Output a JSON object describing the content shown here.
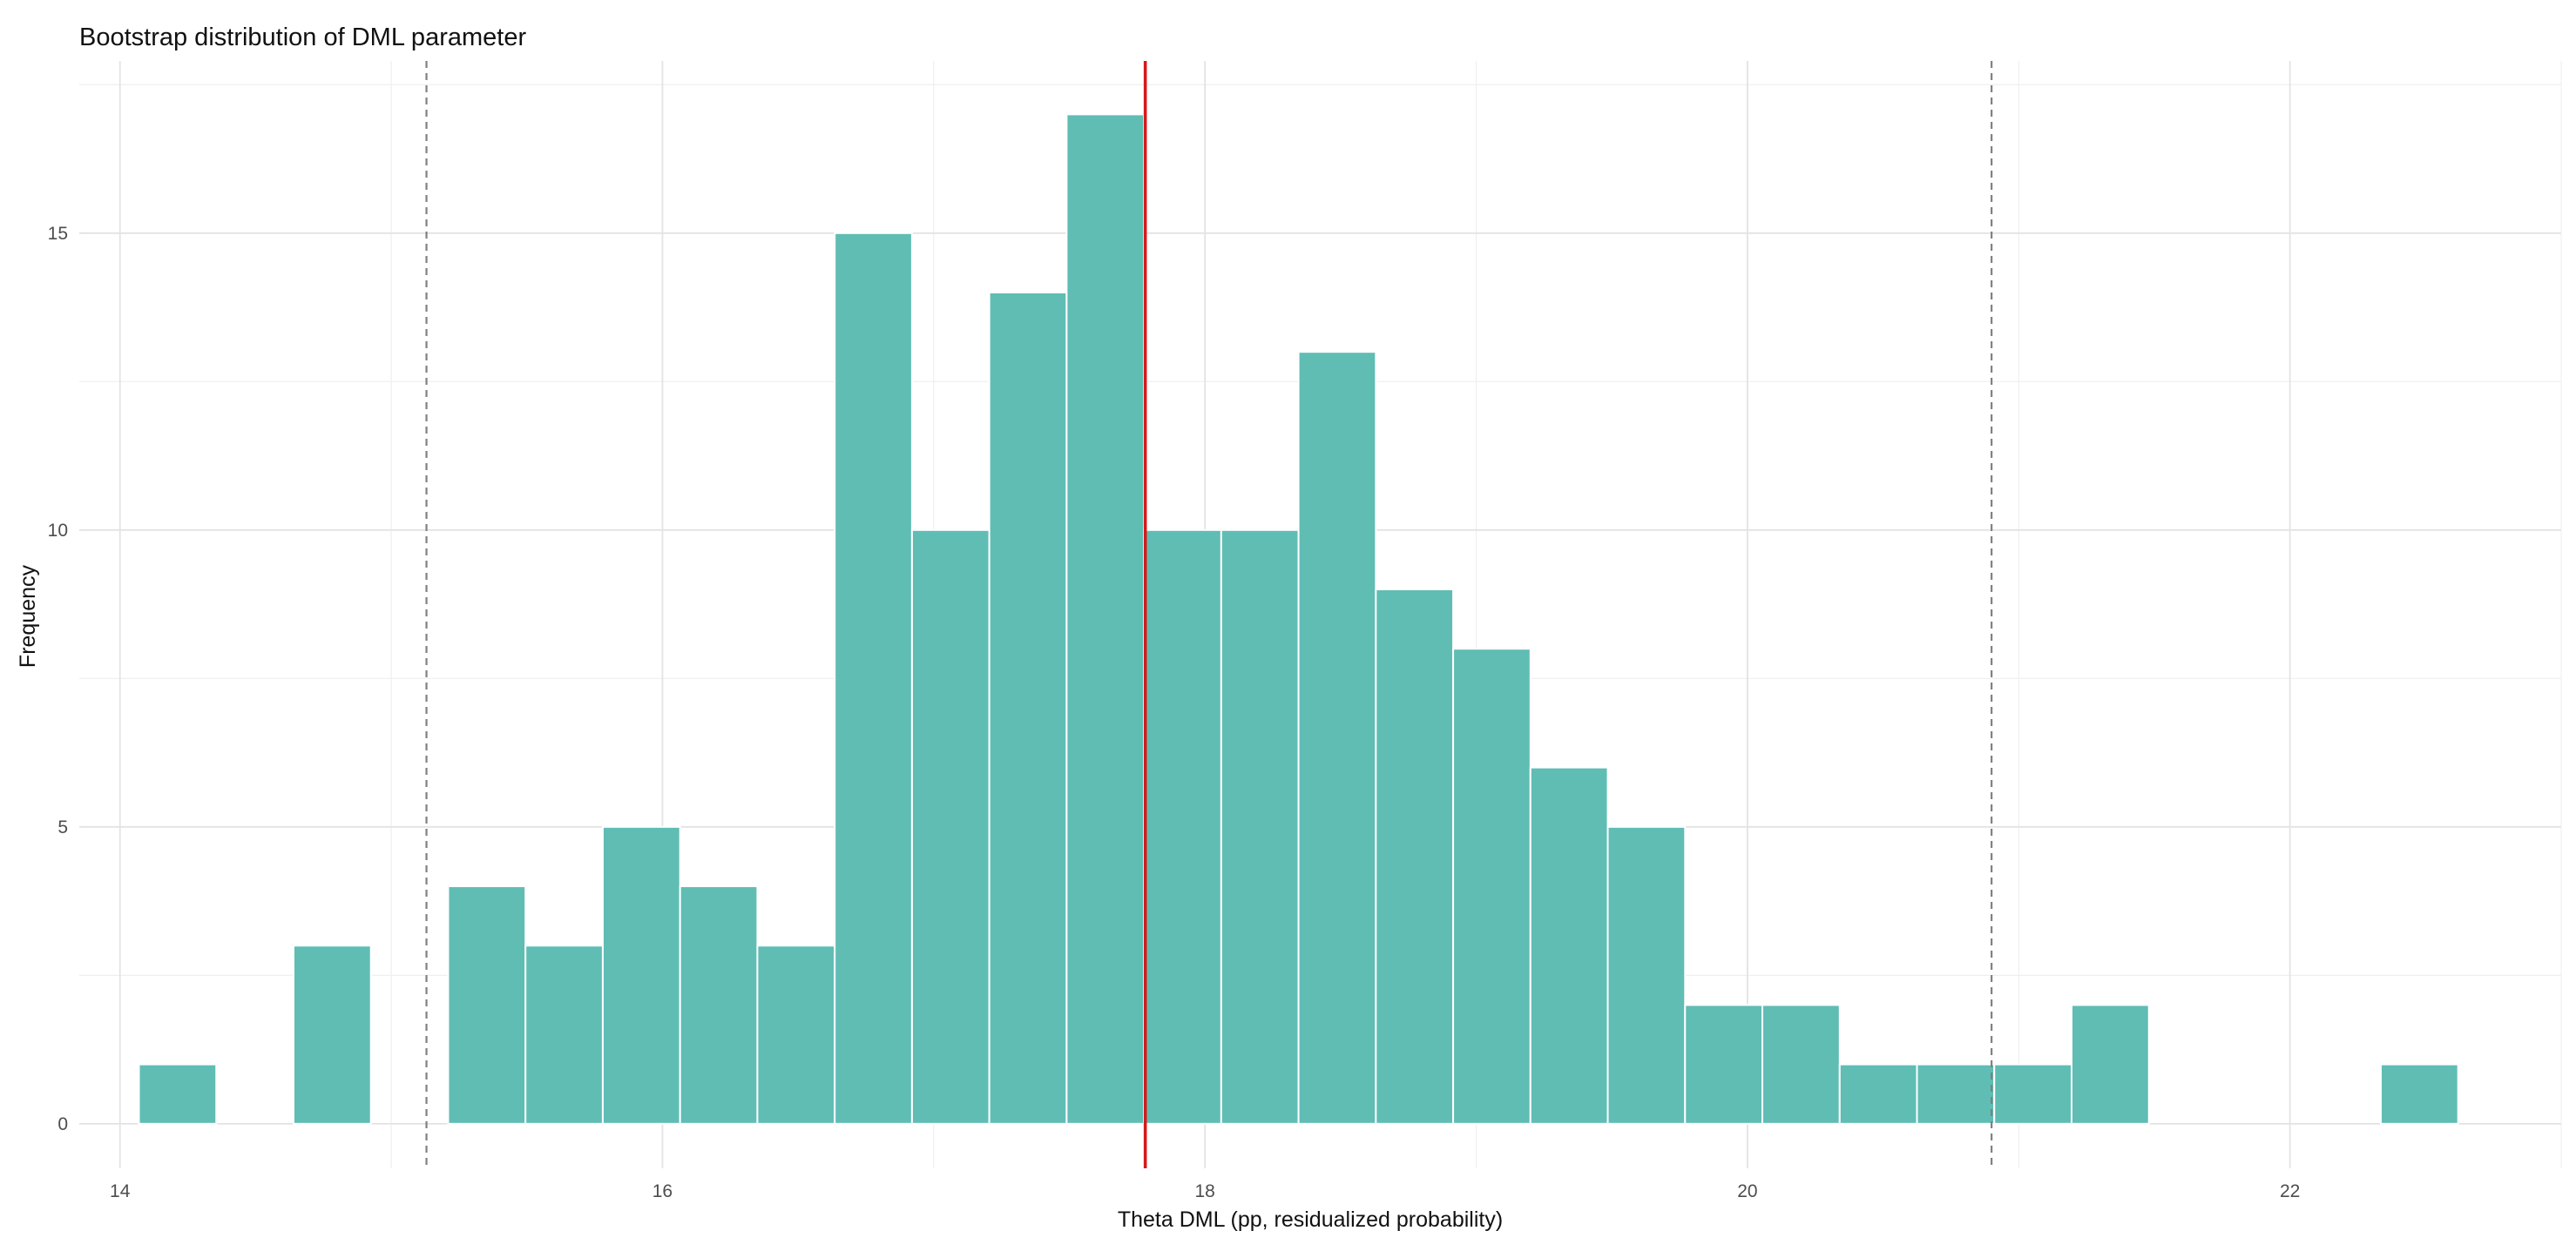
{
  "chart_data": {
    "type": "bar",
    "subtype": "histogram",
    "title": "Bootstrap distribution of DML parameter",
    "xlabel": "Theta DML (pp, residualized probability)",
    "ylabel": "Frequency",
    "xlim": [
      13.85,
      23.0
    ],
    "ylim": [
      -0.75,
      17.9
    ],
    "x_ticks": [
      14,
      16,
      18,
      20,
      22
    ],
    "y_ticks": [
      0,
      5,
      10,
      15
    ],
    "bin_width": 0.285,
    "bins": [
      {
        "x0": 14.07,
        "x1": 14.355,
        "count": 1
      },
      {
        "x0": 14.355,
        "x1": 14.64,
        "count": 0
      },
      {
        "x0": 14.64,
        "x1": 14.925,
        "count": 3
      },
      {
        "x0": 14.925,
        "x1": 15.21,
        "count": 0
      },
      {
        "x0": 15.21,
        "x1": 15.495,
        "count": 4
      },
      {
        "x0": 15.495,
        "x1": 15.78,
        "count": 3
      },
      {
        "x0": 15.78,
        "x1": 16.065,
        "count": 5
      },
      {
        "x0": 16.065,
        "x1": 16.35,
        "count": 4
      },
      {
        "x0": 16.35,
        "x1": 16.635,
        "count": 3
      },
      {
        "x0": 16.635,
        "x1": 16.92,
        "count": 15
      },
      {
        "x0": 16.92,
        "x1": 17.205,
        "count": 10
      },
      {
        "x0": 17.205,
        "x1": 17.49,
        "count": 14
      },
      {
        "x0": 17.49,
        "x1": 17.775,
        "count": 17
      },
      {
        "x0": 17.775,
        "x1": 18.06,
        "count": 10
      },
      {
        "x0": 18.06,
        "x1": 18.345,
        "count": 10
      },
      {
        "x0": 18.345,
        "x1": 18.63,
        "count": 13
      },
      {
        "x0": 18.63,
        "x1": 18.915,
        "count": 9
      },
      {
        "x0": 18.915,
        "x1": 19.2,
        "count": 8
      },
      {
        "x0": 19.2,
        "x1": 19.485,
        "count": 6
      },
      {
        "x0": 19.485,
        "x1": 19.77,
        "count": 5
      },
      {
        "x0": 19.77,
        "x1": 20.055,
        "count": 2
      },
      {
        "x0": 20.055,
        "x1": 20.34,
        "count": 2
      },
      {
        "x0": 20.34,
        "x1": 20.625,
        "count": 1
      },
      {
        "x0": 20.625,
        "x1": 20.91,
        "count": 1
      },
      {
        "x0": 20.91,
        "x1": 21.195,
        "count": 1
      },
      {
        "x0": 21.195,
        "x1": 21.48,
        "count": 2
      },
      {
        "x0": 21.48,
        "x1": 21.765,
        "count": 0
      },
      {
        "x0": 21.765,
        "x1": 22.05,
        "count": 0
      },
      {
        "x0": 22.05,
        "x1": 22.335,
        "count": 0
      },
      {
        "x0": 22.335,
        "x1": 22.62,
        "count": 1
      }
    ],
    "reference_lines": [
      {
        "x": 17.78,
        "style": "solid",
        "color": "#d7191c"
      },
      {
        "x": 15.13,
        "style": "dashed",
        "color": "#808080"
      },
      {
        "x": 20.9,
        "style": "dashed",
        "color": "#808080"
      }
    ],
    "bar_color": "#5fbdb4",
    "bar_border_color": "#ffffff",
    "grid": true,
    "legend": "none"
  }
}
